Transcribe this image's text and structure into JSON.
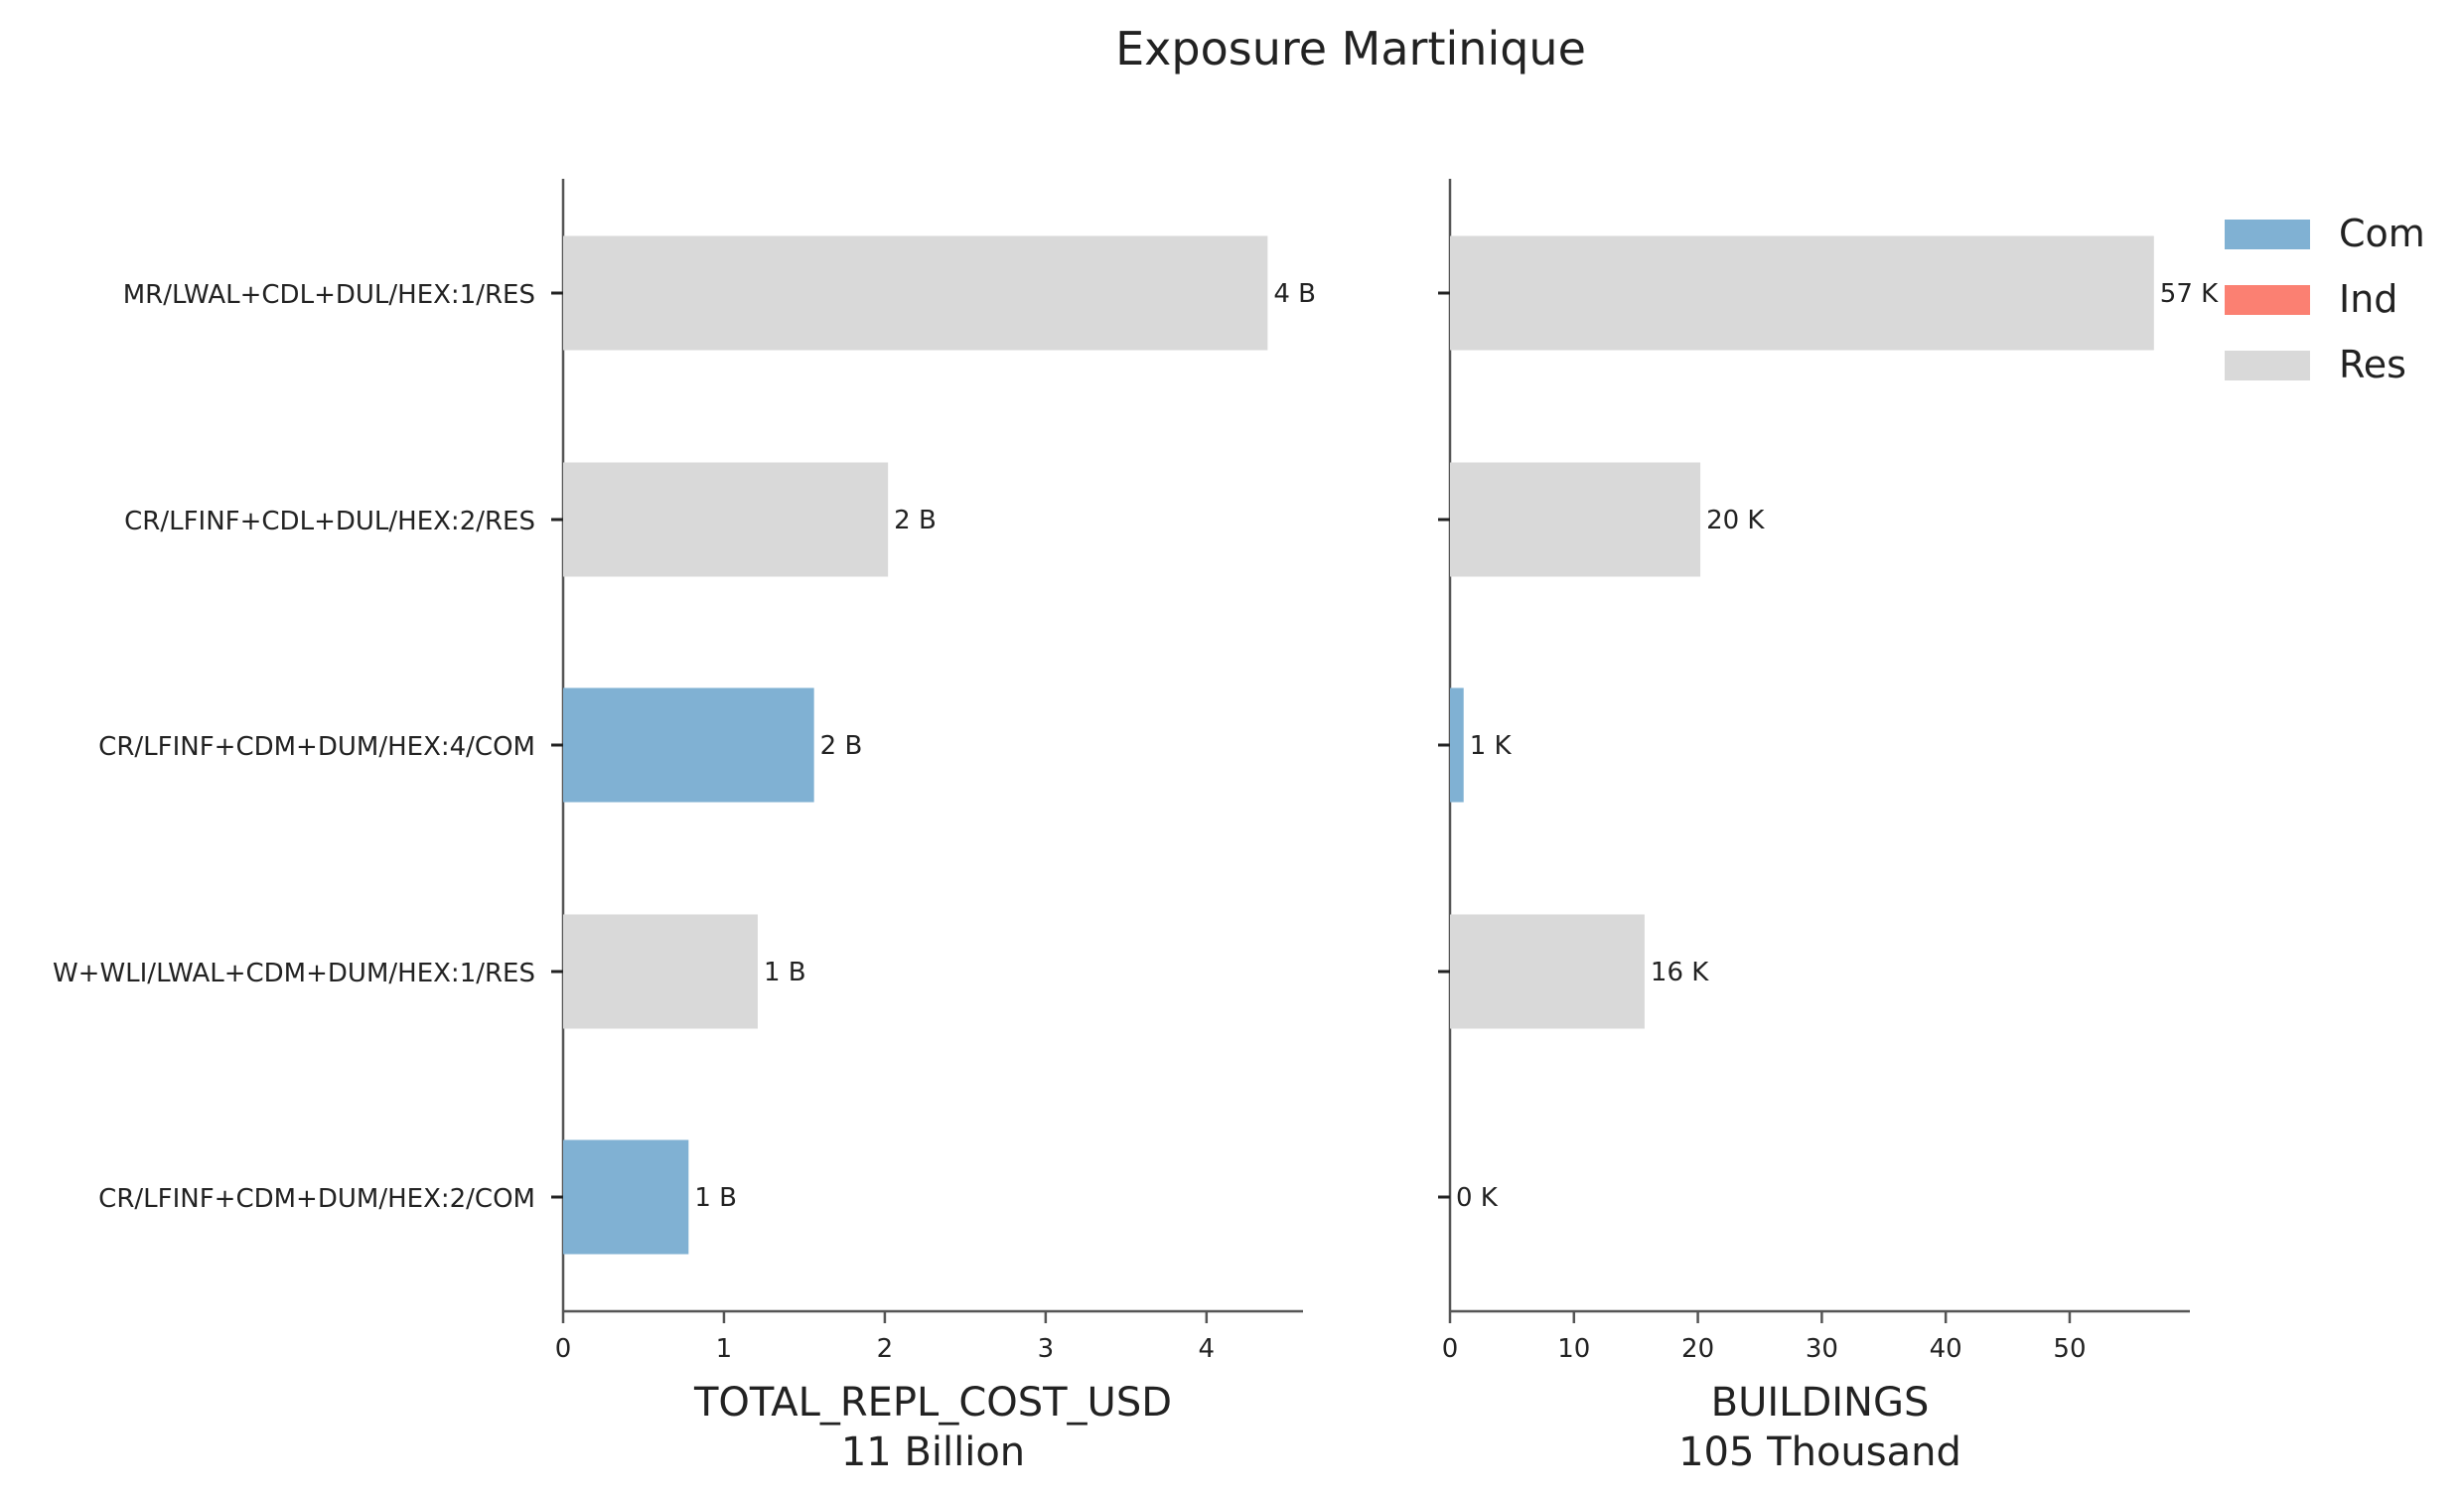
{
  "chart_data": {
    "type": "bar",
    "title": "Exposure Martinique",
    "categories": [
      "MR/LWAL+CDL+DUL/HEX:1/RES",
      "CR/LFINF+CDL+DUL/HEX:2/RES",
      "CR/LFINF+CDM+DUM/HEX:4/COM",
      "W+WLI/LWAL+CDM+DUM/HEX:1/RES",
      "CR/LFINF+CDM+DUM/HEX:2/COM"
    ],
    "bar_class": [
      "Res",
      "Res",
      "Com",
      "Res",
      "Com"
    ],
    "legend": {
      "placement": "top-right",
      "items": [
        {
          "name": "Com",
          "color": "#80b1d3"
        },
        {
          "name": "Ind",
          "color": "#fb8072"
        },
        {
          "name": "Res",
          "color": "#d9d9d9"
        }
      ]
    },
    "panels": [
      {
        "xlabel": "TOTAL_REPL_COST_USD",
        "xlabel_sub": "11 Billion",
        "values": [
          4.38,
          2.02,
          1.56,
          1.21,
          0.78
        ],
        "value_labels": [
          "4 B",
          "2 B",
          "2 B",
          "1 B",
          "1 B"
        ],
        "xlim": [
          0,
          4.6
        ],
        "xticks": [
          0,
          1,
          2,
          3,
          4
        ],
        "xtick_labels": [
          "0",
          "1",
          "2",
          "3",
          "4"
        ]
      },
      {
        "xlabel": "BUILDINGS",
        "xlabel_sub": "105 Thousand",
        "values": [
          56.8,
          20.2,
          1.1,
          15.7,
          0.0
        ],
        "value_labels": [
          "57 K",
          "20 K",
          "1 K",
          "16 K",
          "0 K"
        ],
        "xlim": [
          0,
          59.7
        ],
        "xticks": [
          0,
          10,
          20,
          30,
          40,
          50
        ],
        "xtick_labels": [
          "0",
          "10",
          "20",
          "30",
          "40",
          "50"
        ]
      }
    ],
    "grid": false
  }
}
